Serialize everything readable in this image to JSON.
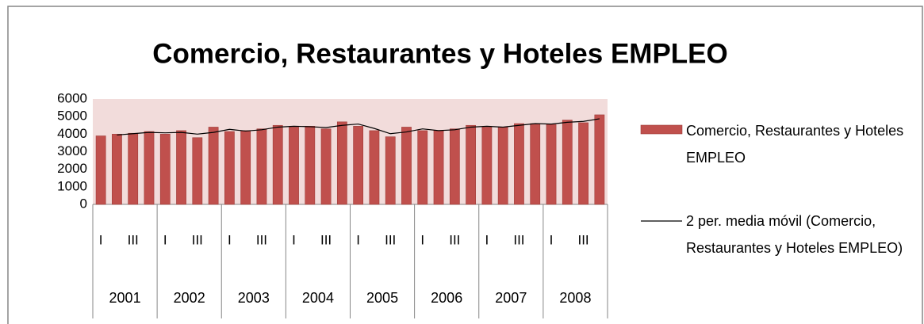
{
  "chart_data": {
    "type": "bar",
    "title": "Comercio, Restaurantes y Hoteles EMPLEO",
    "groups": [
      "2001",
      "2002",
      "2003",
      "2004",
      "2005",
      "2006",
      "2007",
      "2008"
    ],
    "categories": [
      "I",
      null,
      "III",
      null,
      "I",
      null,
      "III",
      null,
      "I",
      null,
      "III",
      null,
      "I",
      null,
      "III",
      null,
      "I",
      null,
      "III",
      null,
      "I",
      null,
      "III",
      null,
      "I",
      null,
      "III",
      null,
      "I",
      null,
      "III",
      null
    ],
    "series": [
      {
        "name": "Comercio, Restaurantes y Hoteles EMPLEO",
        "type": "bar",
        "color": "#c0504d",
        "values": [
          3900,
          4000,
          4050,
          4150,
          4000,
          4200,
          3800,
          4400,
          4150,
          4200,
          4300,
          4500,
          4400,
          4450,
          4300,
          4700,
          4450,
          4200,
          3850,
          4400,
          4200,
          4200,
          4300,
          4500,
          4400,
          4400,
          4600,
          4600,
          4550,
          4800,
          4650,
          5100
        ]
      },
      {
        "name": "2 per. media móvil (Comercio, Restaurantes y Hoteles EMPLEO)",
        "type": "line",
        "color": "#000000",
        "values": [
          null,
          3950,
          4025,
          4100,
          4075,
          4100,
          4000,
          4100,
          4275,
          4175,
          4250,
          4400,
          4450,
          4425,
          4375,
          4500,
          4575,
          4325,
          4025,
          4125,
          4300,
          4200,
          4250,
          4400,
          4450,
          4400,
          4500,
          4600,
          4575,
          4675,
          4725,
          4875
        ]
      }
    ],
    "ylim": [
      0,
      6000
    ],
    "yticks": [
      0,
      1000,
      2000,
      3000,
      4000,
      5000,
      6000
    ],
    "grid": false,
    "legend": "right"
  }
}
